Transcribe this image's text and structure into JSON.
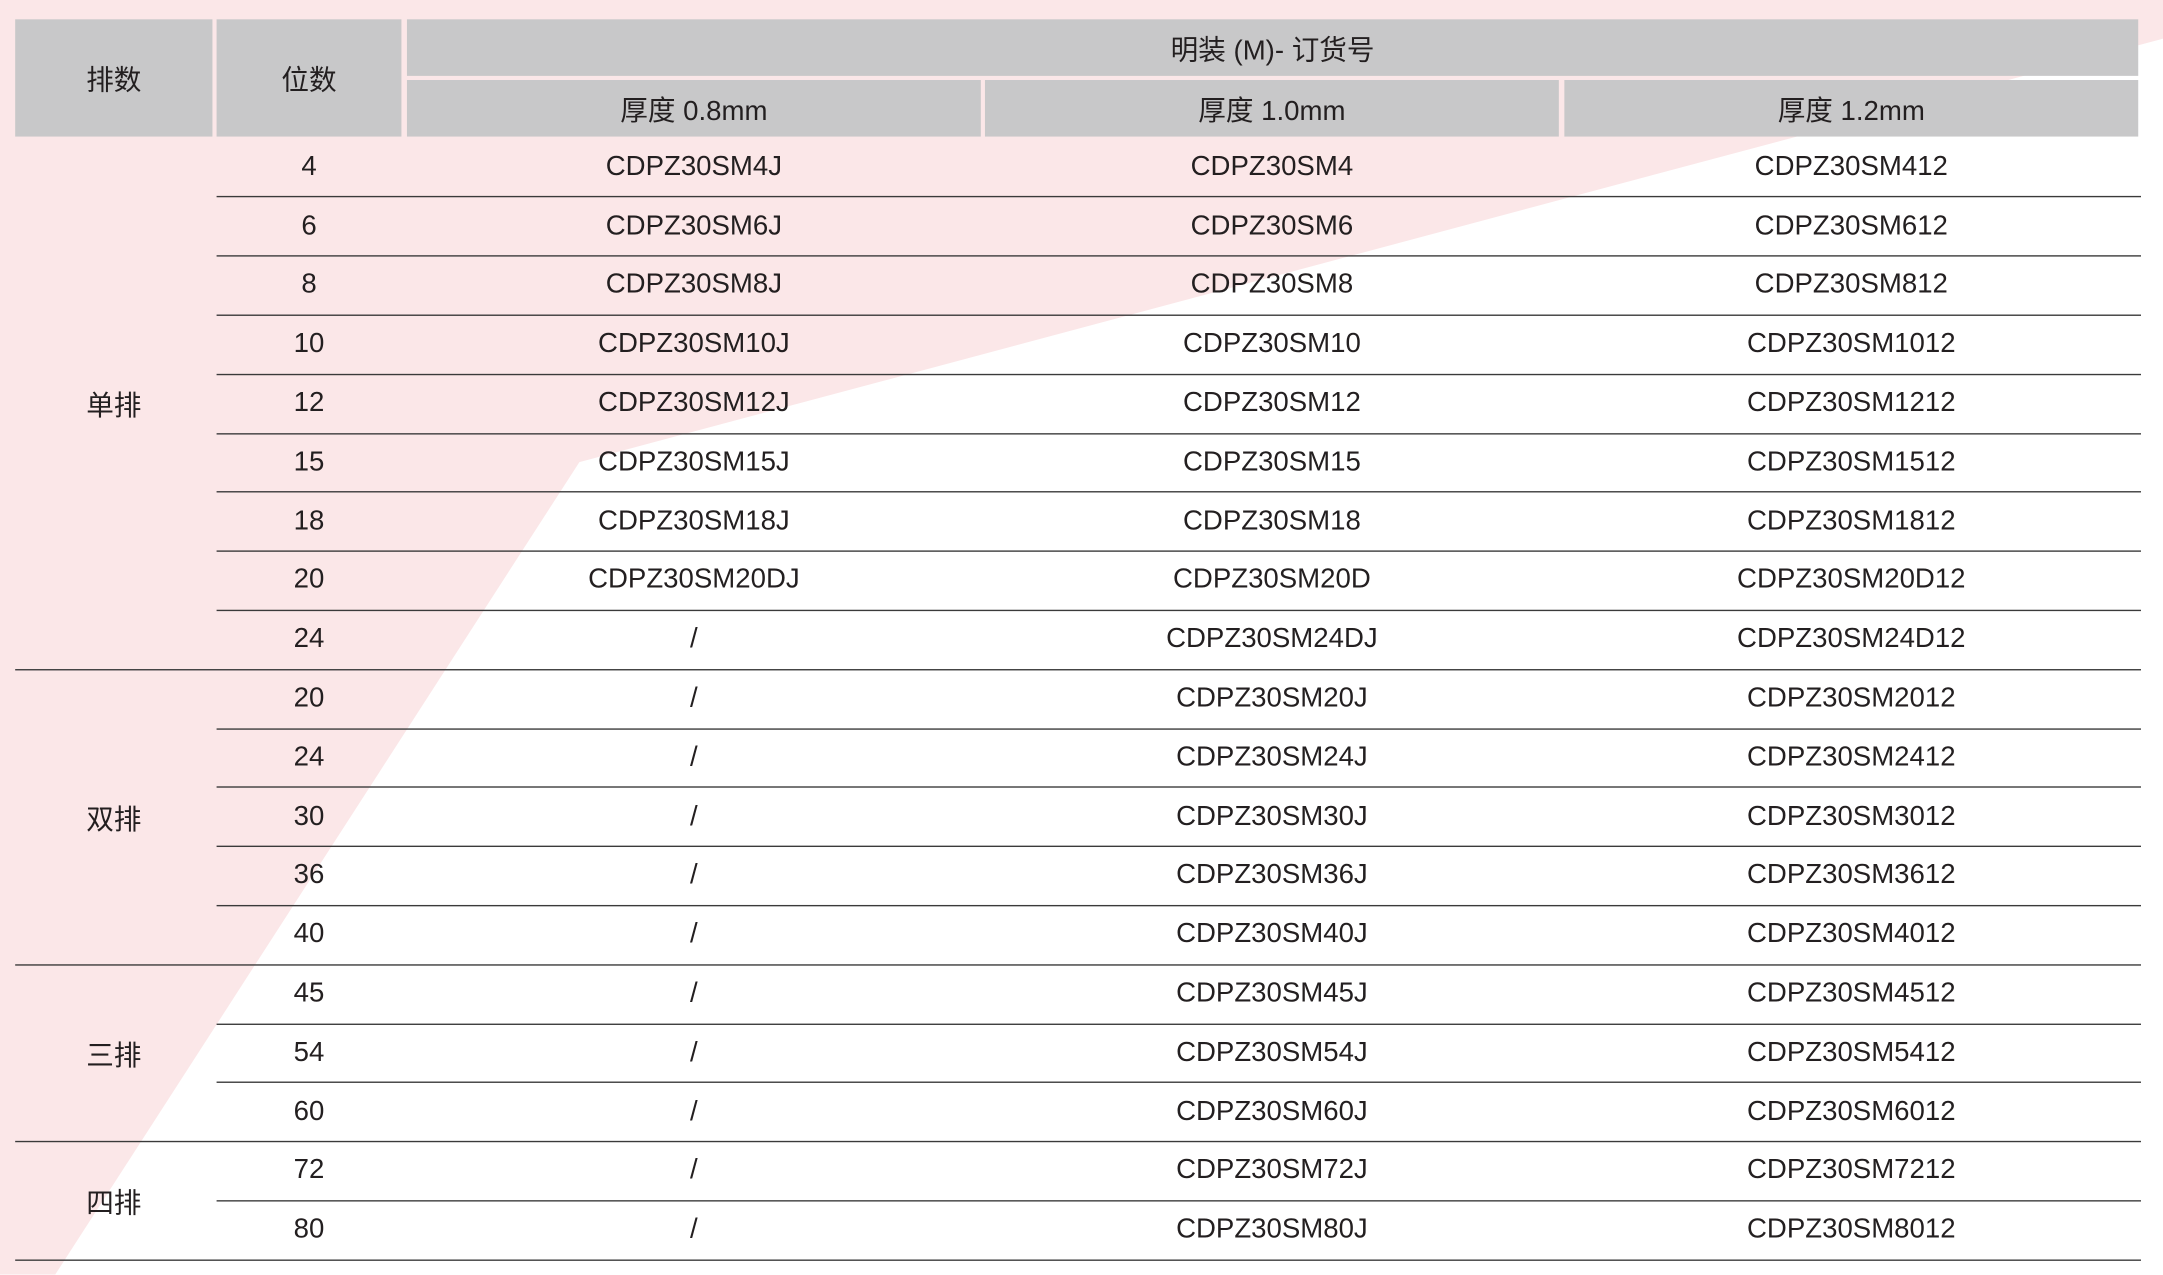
{
  "header": {
    "rows_label": "排数",
    "positions_label": "位数",
    "group_label": "明装 (M)- 订货号",
    "thickness_columns": [
      "厚度 0.8mm",
      "厚度 1.0mm",
      "厚度 1.2mm"
    ]
  },
  "groups": [
    {
      "label": "单排",
      "rows": [
        {
          "positions": "4",
          "codes": [
            "CDPZ30SM4J",
            "CDPZ30SM4",
            "CDPZ30SM412"
          ]
        },
        {
          "positions": "6",
          "codes": [
            "CDPZ30SM6J",
            "CDPZ30SM6",
            "CDPZ30SM612"
          ]
        },
        {
          "positions": "8",
          "codes": [
            "CDPZ30SM8J",
            "CDPZ30SM8",
            "CDPZ30SM812"
          ]
        },
        {
          "positions": "10",
          "codes": [
            "CDPZ30SM10J",
            "CDPZ30SM10",
            "CDPZ30SM1012"
          ]
        },
        {
          "positions": "12",
          "codes": [
            "CDPZ30SM12J",
            "CDPZ30SM12",
            "CDPZ30SM1212"
          ]
        },
        {
          "positions": "15",
          "codes": [
            "CDPZ30SM15J",
            "CDPZ30SM15",
            "CDPZ30SM1512"
          ]
        },
        {
          "positions": "18",
          "codes": [
            "CDPZ30SM18J",
            "CDPZ30SM18",
            "CDPZ30SM1812"
          ]
        },
        {
          "positions": "20",
          "codes": [
            "CDPZ30SM20DJ",
            "CDPZ30SM20D",
            "CDPZ30SM20D12"
          ]
        },
        {
          "positions": "24",
          "codes": [
            "/",
            "CDPZ30SM24DJ",
            "CDPZ30SM24D12"
          ]
        }
      ]
    },
    {
      "label": "双排",
      "rows": [
        {
          "positions": "20",
          "codes": [
            "/",
            "CDPZ30SM20J",
            "CDPZ30SM2012"
          ]
        },
        {
          "positions": "24",
          "codes": [
            "/",
            "CDPZ30SM24J",
            "CDPZ30SM2412"
          ]
        },
        {
          "positions": "30",
          "codes": [
            "/",
            "CDPZ30SM30J",
            "CDPZ30SM3012"
          ]
        },
        {
          "positions": "36",
          "codes": [
            "/",
            "CDPZ30SM36J",
            "CDPZ30SM3612"
          ]
        },
        {
          "positions": "40",
          "codes": [
            "/",
            "CDPZ30SM40J",
            "CDPZ30SM4012"
          ]
        }
      ]
    },
    {
      "label": "三排",
      "rows": [
        {
          "positions": "45",
          "codes": [
            "/",
            "CDPZ30SM45J",
            "CDPZ30SM4512"
          ]
        },
        {
          "positions": "54",
          "codes": [
            "/",
            "CDPZ30SM54J",
            "CDPZ30SM5412"
          ]
        },
        {
          "positions": "60",
          "codes": [
            "/",
            "CDPZ30SM60J",
            "CDPZ30SM6012"
          ]
        }
      ]
    },
    {
      "label": "四排",
      "rows": [
        {
          "positions": "72",
          "codes": [
            "/",
            "CDPZ30SM72J",
            "CDPZ30SM7212"
          ]
        },
        {
          "positions": "80",
          "codes": [
            "/",
            "CDPZ30SM80J",
            "CDPZ30SM8012"
          ]
        }
      ]
    }
  ],
  "colors": {
    "header_bg": "#c8c8c9",
    "background_accent": "#fbe7e8",
    "rule": "#3a3a3a"
  }
}
